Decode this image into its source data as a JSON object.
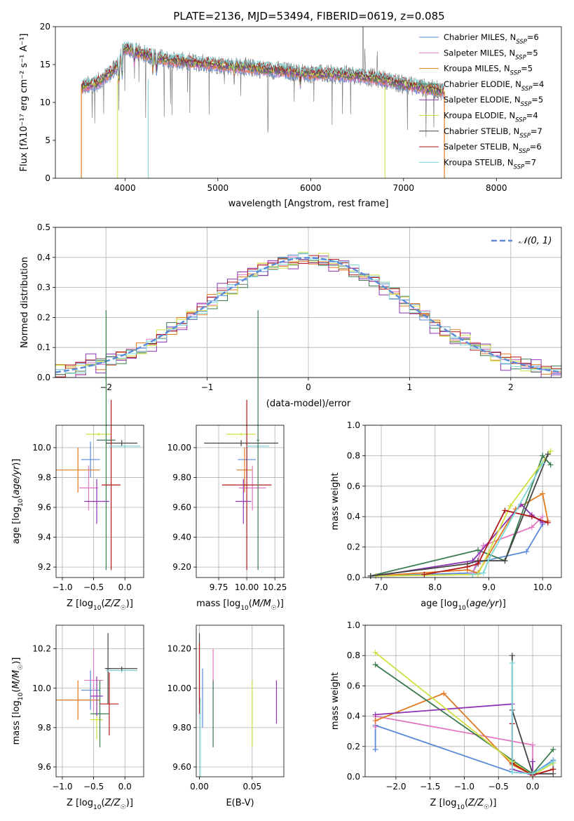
{
  "title": "PLATE=2136, MJD=53494, FIBERID=0619, z=0.085",
  "chart_data": [
    {
      "id": "spectrum",
      "type": "line",
      "xlabel": "wavelength [Angstrom, rest frame]",
      "ylabel": "Flux [fλ10⁻¹⁷ erg cm⁻² s⁻¹ A⁻¹]",
      "xlim": [
        3250,
        8700
      ],
      "ylim": [
        0,
        20
      ],
      "xticks": [
        4000,
        5000,
        6000,
        7000,
        8000
      ],
      "yticks": [
        0,
        5,
        10,
        15,
        20
      ],
      "grid": false,
      "legend_position": "upper-right",
      "data_range": [
        3530,
        7440
      ],
      "continuum": {
        "x": [
          3530,
          3700,
          3900,
          4000,
          4200,
          4500,
          5000,
          5500,
          6000,
          6500,
          6800,
          7000,
          7200,
          7440
        ],
        "y": [
          12.0,
          12.6,
          14.5,
          17.2,
          16.4,
          15.5,
          15.0,
          14.4,
          13.8,
          13.6,
          13.0,
          12.4,
          12.0,
          11.5
        ]
      },
      "observed_absorption_features": [
        {
          "x": 3934,
          "depth": 6
        },
        {
          "x": 3968,
          "depth": 5
        },
        {
          "x": 4101,
          "depth": 3
        },
        {
          "x": 4300,
          "depth": 3
        },
        {
          "x": 4340,
          "depth": 3
        },
        {
          "x": 5175,
          "depth": 2
        },
        {
          "x": 5890,
          "depth": 2
        }
      ],
      "observed_emission_lines": [
        {
          "x": 6563,
          "height": 20
        },
        {
          "x": 6583,
          "height": 5
        },
        {
          "x": 6717,
          "height": 3
        }
      ],
      "series": [
        {
          "name": "Chabrier MILES, N_SSP=6",
          "color": "#5b8ad9"
        },
        {
          "name": "Salpeter MILES, N_SSP=5",
          "color": "#e377c2"
        },
        {
          "name": "Kroupa MILES, N_SSP=5",
          "color": "#e07a1f"
        },
        {
          "name": "Chabrier ELODIE, N_SSP=4",
          "color": "#3a7a4f"
        },
        {
          "name": "Salpeter ELODIE, N_SSP=5",
          "color": "#8e35b5"
        },
        {
          "name": "Kroupa ELODIE, N_SSP=4",
          "color": "#cfe040"
        },
        {
          "name": "Chabrier STELIB, N_SSP=7",
          "color": "#444444"
        },
        {
          "name": "Salpeter STELIB, N_SSP=6",
          "color": "#b01818"
        },
        {
          "name": "Kroupa STELIB, N_SSP=7",
          "color": "#7fd6d6"
        }
      ],
      "legend_labels": [
        {
          "text": "Chabrier MILES, N",
          "sub": "SSP",
          "post": "=6",
          "color": "#5b8ad9"
        },
        {
          "text": "Salpeter MILES, N",
          "sub": "SSP",
          "post": "=5",
          "color": "#e377c2"
        },
        {
          "text": "Kroupa MILES, N",
          "sub": "SSP",
          "post": "=5",
          "color": "#e07a1f"
        },
        {
          "text": "Chabrier ELODIE, N",
          "sub": "SSP",
          "post": "=4",
          "color": "#3a7a4f"
        },
        {
          "text": "Salpeter ELODIE, N",
          "sub": "SSP",
          "post": "=5",
          "color": "#8e35b5"
        },
        {
          "text": "Kroupa ELODIE, N",
          "sub": "SSP",
          "post": "=4",
          "color": "#cfe040"
        },
        {
          "text": "Chabrier STELIB, N",
          "sub": "SSP",
          "post": "=7",
          "color": "#444444"
        },
        {
          "text": "Salpeter STELIB, N",
          "sub": "SSP",
          "post": "=6",
          "color": "#b01818"
        },
        {
          "text": "Kroupa STELIB, N",
          "sub": "SSP",
          "post": "=7",
          "color": "#7fd6d6"
        }
      ],
      "observed_color": "#808080"
    },
    {
      "id": "residuals",
      "type": "histogram",
      "xlabel": "(data-model)/error",
      "ylabel": "Normed distribution",
      "xlim": [
        -2.5,
        2.5
      ],
      "ylim": [
        0,
        0.5
      ],
      "xticks": [
        -2,
        -1,
        0,
        1,
        2
      ],
      "yticks": [
        0.0,
        0.1,
        0.2,
        0.3,
        0.4,
        0.5
      ],
      "grid": true,
      "legend_position": "upper-right",
      "reference_curve": {
        "name": "𝒩(0, 1)",
        "mean": 0,
        "sigma": 1,
        "color": "#5b8ad9"
      },
      "bin_width": 0.1,
      "histograms": [
        {
          "color": "#5b8ad9",
          "scatter": 0.018
        },
        {
          "color": "#e377c2",
          "scatter": 0.02
        },
        {
          "color": "#e07a1f",
          "scatter": 0.024
        },
        {
          "color": "#3a7a4f",
          "scatter": 0.026
        },
        {
          "color": "#8e35b5",
          "scatter": 0.04
        },
        {
          "color": "#cfe040",
          "scatter": 0.024
        },
        {
          "color": "#b01818",
          "scatter": 0.02
        },
        {
          "color": "#7fd6d6",
          "scatter": 0.018
        }
      ]
    },
    {
      "id": "age_vs_z",
      "type": "scatter",
      "xlabel": "Z [log10(Z/Z☉)]",
      "ylabel": "age  [log10(age/yr)]",
      "xlim": [
        -1.1,
        0.3
      ],
      "ylim": [
        9.13,
        10.15
      ],
      "xticks": [
        -1.0,
        -0.5,
        0.0
      ],
      "yticks": [
        9.2,
        9.4,
        9.6,
        9.8,
        10.0
      ],
      "grid": true,
      "points": [
        {
          "color": "#5b8ad9",
          "x": -0.55,
          "y": 9.92,
          "xerr": 0.15,
          "yerr": 0.12
        },
        {
          "color": "#e07a1f",
          "x": -0.75,
          "y": 9.85,
          "xerr": 0.35,
          "yerr": 0.15
        },
        {
          "color": "#cfe040",
          "x": -0.42,
          "y": 10.09,
          "xerr": 0.2,
          "yerr": 0.01
        },
        {
          "color": "#e377c2",
          "x": -0.58,
          "y": 9.73,
          "xerr": 0.15,
          "yerr": 0.15
        },
        {
          "color": "#3a7a4f",
          "x": -0.3,
          "y": 10.05,
          "xerr": 0.15,
          "yerr": 0.87
        },
        {
          "color": "#444444",
          "x": -0.05,
          "y": 10.03,
          "xerr": 0.25,
          "yerr": 0.02
        },
        {
          "color": "#b01818",
          "x": -0.22,
          "y": 9.75,
          "xerr": 0.15,
          "yerr": 0.57
        },
        {
          "color": "#8e35b5",
          "x": -0.45,
          "y": 9.64,
          "xerr": 0.2,
          "yerr": 0.15
        },
        {
          "color": "#7fd6d6",
          "x": 0.0,
          "y": 10.01,
          "xerr": 0.25,
          "yerr": 0.01
        }
      ]
    },
    {
      "id": "age_vs_mass",
      "type": "scatter",
      "xlabel": "mass [log10(M/M☉)]",
      "ylabel": "",
      "xlim": [
        9.55,
        10.33
      ],
      "ylim": [
        9.13,
        10.15
      ],
      "xticks": [
        9.75,
        10.0,
        10.25
      ],
      "yticks": [
        9.2,
        9.4,
        9.6,
        9.8,
        10.0
      ],
      "grid": true,
      "points": [
        {
          "color": "#cfe040",
          "x": 9.95,
          "y": 10.09,
          "xerr": 0.13,
          "yerr": 0.01
        },
        {
          "color": "#5b8ad9",
          "x": 10.0,
          "y": 9.92,
          "xerr": 0.08,
          "yerr": 0.12
        },
        {
          "color": "#444444",
          "x": 9.95,
          "y": 10.03,
          "xerr": 0.33,
          "yerr": 0.02
        },
        {
          "color": "#e07a1f",
          "x": 9.98,
          "y": 9.85,
          "xerr": 0.07,
          "yerr": 0.15
        },
        {
          "color": "#e377c2",
          "x": 10.05,
          "y": 9.73,
          "xerr": 0.12,
          "yerr": 0.15
        },
        {
          "color": "#b01818",
          "x": 10.0,
          "y": 9.75,
          "xerr": 0.22,
          "yerr": 0.57
        },
        {
          "color": "#8e35b5",
          "x": 9.97,
          "y": 9.64,
          "xerr": 0.07,
          "yerr": 0.15
        },
        {
          "color": "#7fd6d6",
          "x": 10.1,
          "y": 10.01,
          "xerr": 0.1,
          "yerr": 0.01
        },
        {
          "color": "#3a7a4f",
          "x": 10.1,
          "y": 10.05,
          "xerr": 0.01,
          "yerr": 0.87
        }
      ]
    },
    {
      "id": "weight_vs_age",
      "type": "line",
      "xlabel": "age  [log10(age/yr)]",
      "ylabel": "mass weight",
      "xlim": [
        6.7,
        10.35
      ],
      "ylim": [
        0,
        1.0
      ],
      "xticks": [
        7,
        8,
        9,
        10
      ],
      "yticks": [
        0.0,
        0.2,
        0.4,
        0.6,
        0.8,
        1.0
      ],
      "grid": true,
      "series": [
        {
          "color": "#5b8ad9",
          "x": [
            6.8,
            8.7,
            8.8,
            9.7,
            10.0
          ],
          "y": [
            0.01,
            0.03,
            0.1,
            0.17,
            0.35
          ]
        },
        {
          "color": "#e377c2",
          "x": [
            8.7,
            8.9,
            9.8,
            10.0
          ],
          "y": [
            0.03,
            0.21,
            0.33,
            0.4
          ]
        },
        {
          "color": "#e07a1f",
          "x": [
            6.9,
            8.6,
            8.8,
            9.5,
            10.0,
            10.1
          ],
          "y": [
            0.01,
            0.05,
            0.03,
            0.45,
            0.55,
            0.37
          ]
        },
        {
          "color": "#3a7a4f",
          "x": [
            6.8,
            8.8,
            9.3,
            10.0,
            10.15
          ],
          "y": [
            0.01,
            0.18,
            0.11,
            0.8,
            0.74
          ]
        },
        {
          "color": "#8e35b5",
          "x": [
            6.9,
            8.7,
            9.6,
            9.8,
            10.0
          ],
          "y": [
            0.01,
            0.11,
            0.48,
            0.41,
            0.36
          ]
        },
        {
          "color": "#cfe040",
          "x": [
            6.9,
            8.8,
            9.4,
            10.15
          ],
          "y": [
            0.01,
            0.02,
            0.47,
            0.83
          ]
        },
        {
          "color": "#444444",
          "x": [
            6.8,
            8.6,
            8.8,
            9.3,
            10.1
          ],
          "y": [
            0.01,
            0.09,
            0.11,
            0.11,
            0.81
          ]
        },
        {
          "color": "#b01818",
          "x": [
            7.8,
            8.6,
            8.8,
            9.3,
            9.8,
            10.1
          ],
          "y": [
            0.02,
            0.07,
            0.09,
            0.44,
            0.4,
            0.36
          ]
        },
        {
          "color": "#7fd6d6",
          "x": [
            8.7,
            8.9,
            9.0,
            10.0
          ],
          "y": [
            0.02,
            0.03,
            0.12,
            0.75
          ]
        }
      ]
    },
    {
      "id": "mass_vs_z",
      "type": "scatter",
      "xlabel": "Z [log10(Z/Z☉)]",
      "ylabel": "mass [log10(M/M☉)]",
      "xlim": [
        -1.1,
        0.3
      ],
      "ylim": [
        9.55,
        10.32
      ],
      "xticks": [
        -1.0,
        -0.5,
        0.0
      ],
      "yticks": [
        9.6,
        9.8,
        10.0,
        10.2
      ],
      "grid": true,
      "points": [
        {
          "color": "#5b8ad9",
          "x": -0.55,
          "y": 9.99,
          "xerr": 0.15,
          "yerr": 0.1
        },
        {
          "color": "#e07a1f",
          "x": -0.75,
          "y": 9.94,
          "xerr": 0.35,
          "yerr": 0.1
        },
        {
          "color": "#cfe040",
          "x": -0.45,
          "y": 9.84,
          "xerr": 0.1,
          "yerr": 0.1
        },
        {
          "color": "#e377c2",
          "x": -0.5,
          "y": 10.04,
          "xerr": 0.15,
          "yerr": 0.16
        },
        {
          "color": "#3a7a4f",
          "x": -0.4,
          "y": 9.87,
          "xerr": 0.15,
          "yerr": 0.17
        },
        {
          "color": "#444444",
          "x": -0.27,
          "y": 10.1,
          "xerr": 0.05,
          "yerr": 0.18
        },
        {
          "color": "#b01818",
          "x": -0.25,
          "y": 9.92,
          "xerr": 0.15,
          "yerr": 0.16
        },
        {
          "color": "#8e35b5",
          "x": -0.45,
          "y": 9.96,
          "xerr": 0.1,
          "yerr": 0.1
        },
        {
          "color": "#7fd6d6",
          "x": -0.05,
          "y": 10.09,
          "xerr": 0.25,
          "yerr": 0.01
        },
        {
          "color": "#444444",
          "x": -0.05,
          "y": 10.1,
          "xerr": 0.25,
          "yerr": 0.01
        }
      ]
    },
    {
      "id": "mass_vs_ebv",
      "type": "scatter",
      "xlabel": "E(B-V)",
      "ylabel": "",
      "xlim": [
        -0.003,
        0.08
      ],
      "ylim": [
        9.55,
        10.32
      ],
      "xticks": [
        0.0,
        0.05
      ],
      "yticks": [
        9.6,
        9.8,
        10.0,
        10.2
      ],
      "grid": true,
      "points": [
        {
          "color": "#444444",
          "x": 0.0,
          "y": 10.1,
          "xerr": 0,
          "yerr": 0.18
        },
        {
          "color": "#b01818",
          "x": 0.0,
          "y": 10.05,
          "xerr": 0,
          "yerr": 0.18
        },
        {
          "color": "#7fd6d6",
          "x": 0.001,
          "y": 9.75,
          "xerr": 0,
          "yerr": 0.2
        },
        {
          "color": "#5b8ad9",
          "x": 0.003,
          "y": 9.95,
          "xerr": 0,
          "yerr": 0.15
        },
        {
          "color": "#e377c2",
          "x": 0.013,
          "y": 10.09,
          "xerr": 0,
          "yerr": 0.11
        },
        {
          "color": "#3a7a4f",
          "x": 0.013,
          "y": 9.87,
          "xerr": 0,
          "yerr": 0.17
        },
        {
          "color": "#cfe040",
          "x": 0.05,
          "y": 9.87,
          "xerr": 0,
          "yerr": 0.17
        },
        {
          "color": "#8e35b5",
          "x": 0.073,
          "y": 9.93,
          "xerr": 0,
          "yerr": 0.11
        }
      ]
    },
    {
      "id": "weight_vs_z",
      "type": "line",
      "xlabel": "Z [log10(Z/Z☉)]",
      "ylabel": "mass weight",
      "xlim": [
        -2.45,
        0.42
      ],
      "ylim": [
        0,
        1.0
      ],
      "xticks": [
        -2.0,
        -1.5,
        -1.0,
        -0.5,
        0.0
      ],
      "yticks": [
        0.0,
        0.2,
        0.4,
        0.6,
        0.8,
        1.0
      ],
      "grid": true,
      "series": [
        {
          "color": "#5b8ad9",
          "x": [
            -2.3,
            -2.3,
            -0.3,
            0.0,
            0.3,
            0.3
          ],
          "y": [
            0.18,
            0.34,
            0.03,
            0.02,
            0.11,
            0.05
          ]
        },
        {
          "color": "#e377c2",
          "x": [
            -2.3,
            -2.3,
            0.0,
            0.0
          ],
          "y": [
            0.33,
            0.4,
            0.21,
            0.02
          ]
        },
        {
          "color": "#e07a1f",
          "x": [
            -2.3,
            -1.3,
            -0.3,
            0.0,
            0.3
          ],
          "y": [
            0.37,
            0.55,
            0.08,
            0.01,
            0.05
          ]
        },
        {
          "color": "#3a7a4f",
          "x": [
            -2.3,
            -0.3,
            0.0,
            0.3
          ],
          "y": [
            0.74,
            0.11,
            0.02,
            0.18
          ]
        },
        {
          "color": "#8e35b5",
          "x": [
            -2.3,
            -0.3,
            -0.3,
            0.0,
            0.0
          ],
          "y": [
            0.41,
            0.48,
            0.05,
            0.01,
            0.1
          ]
        },
        {
          "color": "#cfe040",
          "x": [
            -2.3,
            -0.3,
            0.0,
            0.3
          ],
          "y": [
            0.82,
            0.1,
            0.01,
            0.09
          ]
        },
        {
          "color": "#444444",
          "x": [
            -0.3,
            -0.3,
            0.0,
            0.3
          ],
          "y": [
            0.8,
            0.44,
            0.02,
            0.02
          ]
        },
        {
          "color": "#b01818",
          "x": [
            -0.3,
            -0.3,
            0.0,
            0.3
          ],
          "y": [
            0.35,
            0.09,
            0.01,
            0.05
          ]
        },
        {
          "color": "#7fd6d6",
          "x": [
            -0.3,
            -0.3,
            0.0,
            0.3
          ],
          "y": [
            0.75,
            0.03,
            0.02,
            0.1
          ]
        }
      ]
    }
  ]
}
